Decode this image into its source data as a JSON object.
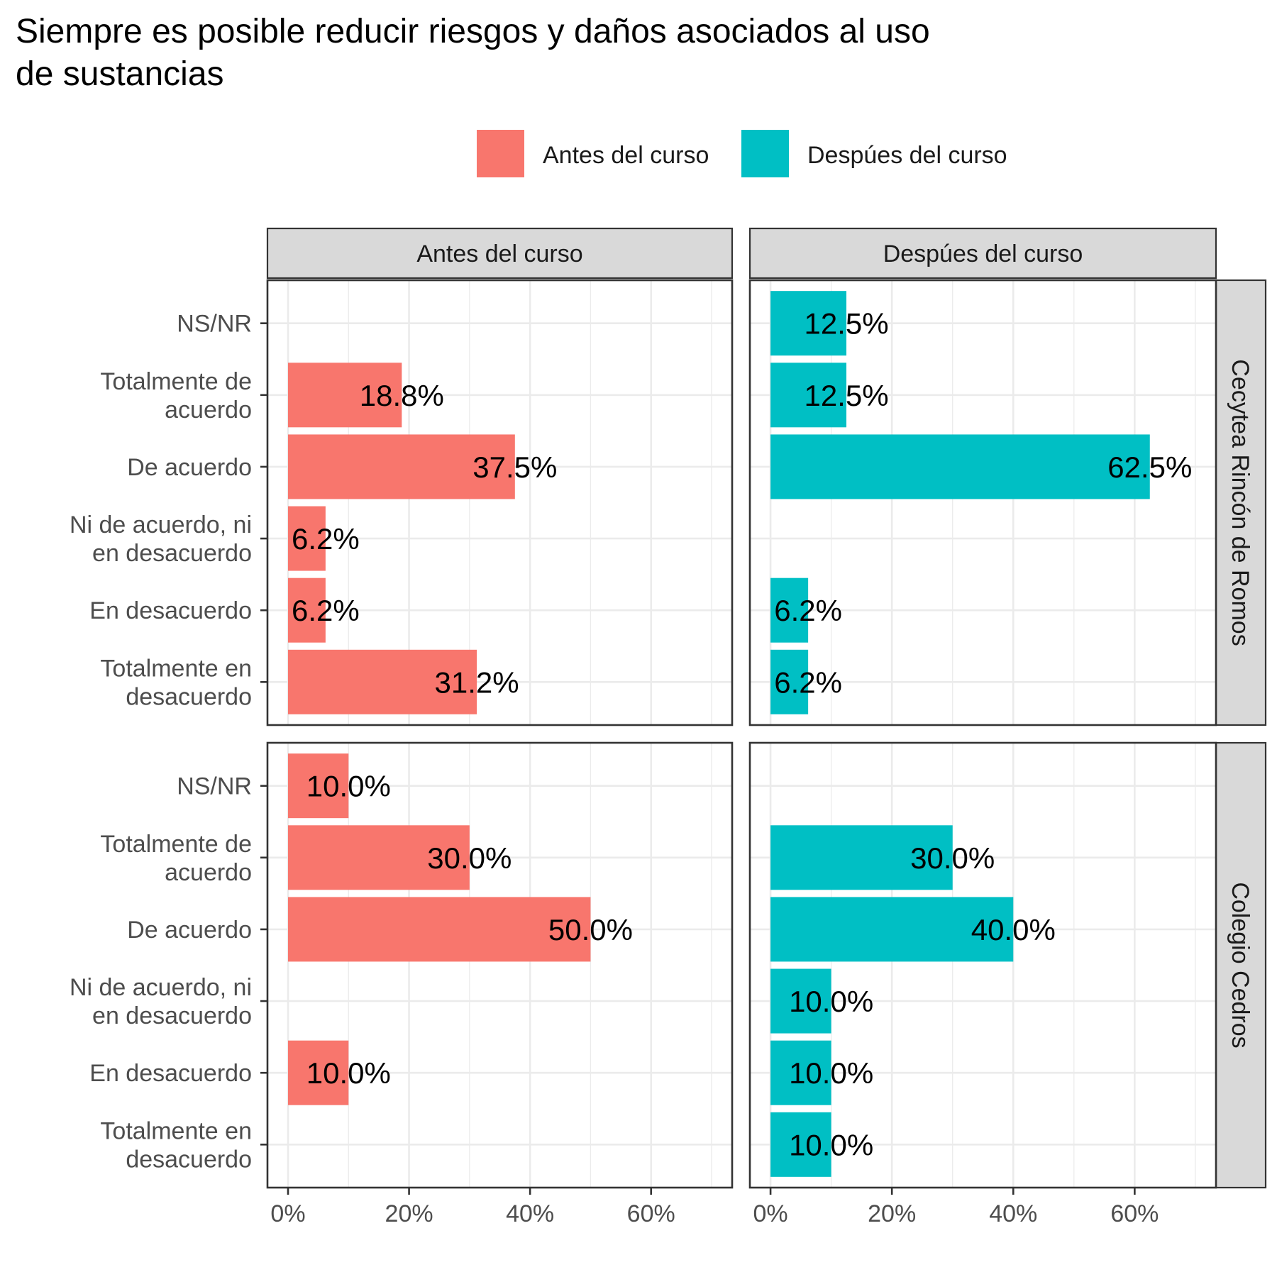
{
  "chart_data": {
    "type": "bar",
    "orientation": "horizontal",
    "title": "Siempre es posible reducir riesgos y daños asociados al uso de sustancias",
    "title_lines": [
      "Siempre es posible reducir riesgos y daños asociados al uso",
      "de sustancias"
    ],
    "categories": [
      "NS/NR",
      "Totalmente de acuerdo",
      "De acuerdo",
      "Ni de acuerdo, ni en desacuerdo",
      "En desacuerdo",
      "Totalmente en desacuerdo"
    ],
    "category_lines": [
      [
        "NS/NR"
      ],
      [
        "Totalmente de",
        "acuerdo"
      ],
      [
        "De acuerdo"
      ],
      [
        "Ni de acuerdo, ni",
        "en desacuerdo"
      ],
      [
        "En desacuerdo"
      ],
      [
        "Totalmente en",
        "desacuerdo"
      ]
    ],
    "facet_columns": [
      "Antes del curso",
      "Despúes del curso"
    ],
    "facet_rows": [
      "Cecytea Rincón de Romos",
      "Colegio Cedros"
    ],
    "legend": {
      "position": "top",
      "entries": [
        {
          "label": "Antes del curso",
          "color": "#F8766D"
        },
        {
          "label": "Despúes del curso",
          "color": "#00BFC4"
        }
      ]
    },
    "x_ticks": [
      "0%",
      "20%",
      "40%",
      "60%"
    ],
    "x_tick_values": [
      0,
      20,
      40,
      60
    ],
    "xlim": [
      -3.4,
      73.4
    ],
    "grid": true,
    "panels": [
      {
        "row": "Cecytea Rincón de Romos",
        "column": "Antes del curso",
        "values": [
          null,
          18.8,
          37.5,
          6.2,
          6.2,
          31.2
        ],
        "labels": [
          null,
          "18.8%",
          "37.5%",
          "6.2%",
          "6.2%",
          "31.2%"
        ]
      },
      {
        "row": "Cecytea Rincón de Romos",
        "column": "Despúes del curso",
        "values": [
          12.5,
          12.5,
          62.5,
          null,
          6.2,
          6.2
        ],
        "labels": [
          "12.5%",
          "12.5%",
          "62.5%",
          null,
          "6.2%",
          "6.2%"
        ]
      },
      {
        "row": "Colegio Cedros",
        "column": "Antes del curso",
        "values": [
          10.0,
          30.0,
          50.0,
          null,
          10.0,
          null
        ],
        "labels": [
          "10.0%",
          "30.0%",
          "50.0%",
          null,
          "10.0%",
          null
        ]
      },
      {
        "row": "Colegio Cedros",
        "column": "Despúes del curso",
        "values": [
          null,
          30.0,
          40.0,
          10.0,
          10.0,
          10.0
        ],
        "labels": [
          null,
          "30.0%",
          "40.0%",
          "10.0%",
          "10.0%",
          "10.0%"
        ]
      }
    ]
  }
}
